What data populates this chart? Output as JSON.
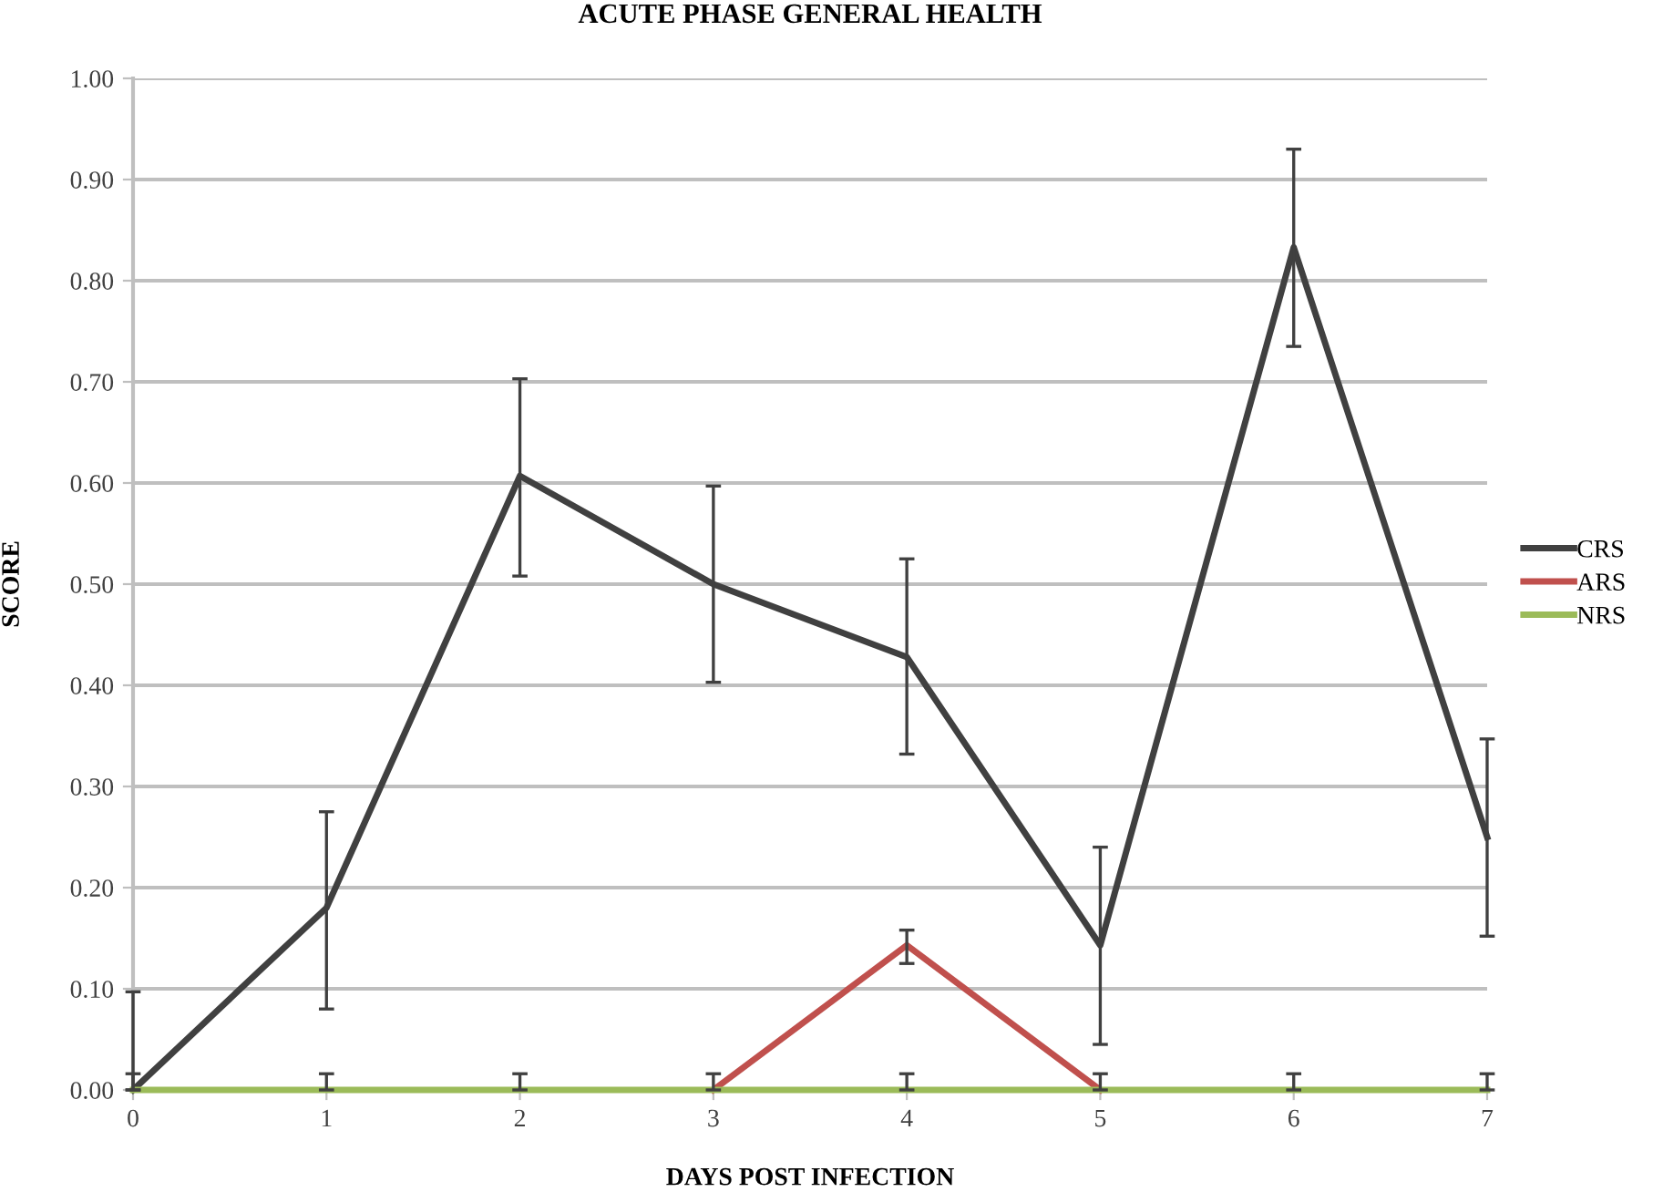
{
  "chart_data": {
    "type": "line",
    "title": "ACUTE PHASE GENERAL HEALTH",
    "xlabel": "DAYS POST INFECTION",
    "ylabel": "SCORE",
    "x": [
      0,
      1,
      2,
      3,
      4,
      5,
      6,
      7
    ],
    "series": [
      {
        "name": "CRS",
        "color": "#404040",
        "values": [
          0,
          0.18,
          0.607,
          0.5,
          0.428,
          0.143,
          0.833,
          0.25
        ],
        "errors": [
          [
            0,
            0.097
          ],
          [
            0.08,
            0.275
          ],
          [
            0.508,
            0.703
          ],
          [
            0.403,
            0.597
          ],
          [
            0.332,
            0.525
          ],
          [
            0.045,
            0.24
          ],
          [
            0.735,
            0.93
          ],
          [
            0.152,
            0.347
          ]
        ]
      },
      {
        "name": "ARS",
        "color": "#c0504d",
        "values": [
          null,
          null,
          null,
          0,
          0.143,
          0,
          null,
          null
        ],
        "errors": [
          null,
          null,
          null,
          null,
          [
            0.125,
            0.158
          ],
          null,
          null,
          null
        ]
      },
      {
        "name": "NRS",
        "color": "#9bbb59",
        "values": [
          0,
          0,
          0,
          0,
          0,
          0,
          0,
          0
        ],
        "errors": [
          [
            0,
            0.016
          ],
          [
            0,
            0.016
          ],
          [
            0,
            0.016
          ],
          [
            0,
            0.016
          ],
          [
            0,
            0.016
          ],
          [
            0,
            0.016
          ],
          [
            0,
            0.016
          ],
          [
            0,
            0.016
          ]
        ]
      }
    ],
    "xlim": [
      0,
      7
    ],
    "xticks": [
      0,
      1,
      2,
      3,
      4,
      5,
      6,
      7
    ],
    "ylim": [
      0,
      1
    ],
    "yticks": [
      {
        "value": 0,
        "label": "0.00"
      },
      {
        "value": 0.1,
        "label": "0.10"
      },
      {
        "value": 0.2,
        "label": "0.20"
      },
      {
        "value": 0.3,
        "label": "0.30"
      },
      {
        "value": 0.4,
        "label": "0.40"
      },
      {
        "value": 0.5,
        "label": "0.50"
      },
      {
        "value": 0.6,
        "label": "0.60"
      },
      {
        "value": 0.7,
        "label": "0.70"
      },
      {
        "value": 0.8,
        "label": "0.80"
      },
      {
        "value": 0.9,
        "label": "0.90"
      },
      {
        "value": 1,
        "label": "1.00"
      }
    ],
    "grid": "y",
    "legend": "right",
    "marker": "none",
    "line_style": "solid"
  }
}
